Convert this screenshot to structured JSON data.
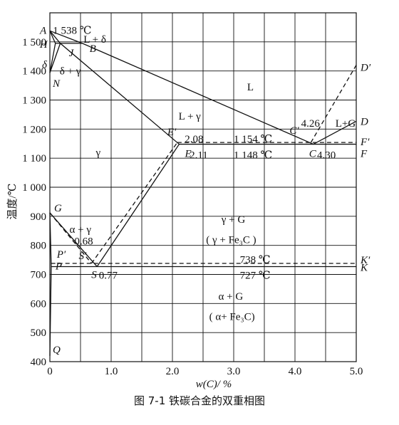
{
  "caption": "图 7-1   铁碳合金的双重相图",
  "chart_data": {
    "type": "phase-diagram",
    "xlabel": "w(C)/ %",
    "ylabel": "温度/℃",
    "xlim": [
      0,
      5.0
    ],
    "ylim": [
      400,
      1600
    ],
    "xticks": [
      "0",
      "1.0",
      "2.0",
      "3.0",
      "4.0",
      "5.0"
    ],
    "yticks": [
      "400",
      "500",
      "600",
      "700",
      "800",
      "900",
      "1 000",
      "1 100",
      "1 200",
      "1 300",
      "1 400",
      "1 500"
    ],
    "grid": true,
    "points": {
      "A": [
        0,
        1538
      ],
      "B": [
        0.53,
        1495
      ],
      "H": [
        0.09,
        1495
      ],
      "J": [
        0.17,
        1495
      ],
      "N": [
        0,
        1394
      ],
      "E": [
        2.11,
        1148
      ],
      "C": [
        4.3,
        1148
      ],
      "D": [
        5.0,
        1227
      ],
      "F": [
        5.0,
        1148
      ],
      "E'": [
        2.08,
        1154
      ],
      "C'": [
        4.26,
        1154
      ],
      "D'": [
        5.0,
        1420
      ],
      "F'": [
        5.0,
        1154
      ],
      "G": [
        0,
        912
      ],
      "S": [
        0.77,
        727
      ],
      "P": [
        0.0218,
        727
      ],
      "K": [
        5.0,
        727
      ],
      "S'": [
        0.68,
        738
      ],
      "P'": [
        0.02,
        738
      ],
      "K'": [
        5.0,
        738
      ],
      "Q": [
        0,
        420
      ]
    },
    "lines": {
      "solid": [
        [
          "A",
          "B",
          "C",
          "D"
        ],
        [
          "A",
          "J",
          "E"
        ],
        [
          "A",
          "H"
        ],
        [
          "H",
          "J",
          "B"
        ],
        [
          "H",
          "N"
        ],
        [
          "N",
          "J"
        ],
        [
          "E",
          "C",
          "F"
        ],
        [
          "G",
          "S"
        ],
        [
          "S",
          "E"
        ],
        [
          "G",
          "P"
        ],
        [
          "P",
          "S",
          "K"
        ],
        [
          "P",
          "Q"
        ]
      ],
      "dashed": [
        [
          "C'",
          "D'"
        ],
        [
          "E'",
          "C'",
          "F'"
        ],
        [
          "S'",
          "E'"
        ],
        [
          "G",
          "S'"
        ],
        [
          "P'",
          "S'",
          "K'"
        ]
      ]
    },
    "point_labels": [
      {
        "name": "A",
        "text": "A"
      },
      {
        "name": "B",
        "text": "B"
      },
      {
        "name": "H",
        "text": "H"
      },
      {
        "name": "J",
        "text": "J"
      },
      {
        "name": "N",
        "text": "N"
      },
      {
        "name": "D",
        "text": "D"
      },
      {
        "name": "D'",
        "text": "D′"
      },
      {
        "name": "F",
        "text": "F"
      },
      {
        "name": "F'",
        "text": "F′"
      },
      {
        "name": "G",
        "text": "G"
      },
      {
        "name": "Q",
        "text": "Q"
      },
      {
        "name": "K",
        "text": "K"
      },
      {
        "name": "K'",
        "text": "K′"
      },
      {
        "name": "P",
        "text": "P"
      },
      {
        "name": "P'",
        "text": "P′"
      },
      {
        "name": "S",
        "text": "S"
      },
      {
        "name": "S'",
        "text": "S′"
      },
      {
        "name": "E",
        "text": "E"
      },
      {
        "name": "E'",
        "text": "E′"
      },
      {
        "name": "C",
        "text": "C"
      },
      {
        "name": "C'",
        "text": "C′"
      },
      {
        "name": "delta",
        "text": "δ"
      }
    ],
    "annotations": [
      {
        "text": "1 538 ℃",
        "x": 0.05,
        "y": 1540
      },
      {
        "text": "L + δ",
        "x": 0.55,
        "y": 1510
      },
      {
        "text": "δ + γ",
        "x": 0.16,
        "y": 1400
      },
      {
        "text": "L",
        "x": 3.22,
        "y": 1345
      },
      {
        "text": "L + γ",
        "x": 2.1,
        "y": 1245
      },
      {
        "text": "4.26",
        "x": 4.1,
        "y": 1220
      },
      {
        "text": "L+G",
        "x": 4.66,
        "y": 1220
      },
      {
        "text": "2.08",
        "x": 2.2,
        "y": 1167
      },
      {
        "text": "1 154 ℃",
        "x": 3.0,
        "y": 1167
      },
      {
        "text": "2.11",
        "x": 2.28,
        "y": 1112
      },
      {
        "text": "1 148 ℃",
        "x": 3.0,
        "y": 1112
      },
      {
        "text": "4.30",
        "x": 4.36,
        "y": 1112
      },
      {
        "text": "γ",
        "x": 0.75,
        "y": 1120
      },
      {
        "text": "γ + G",
        "x": 2.8,
        "y": 890
      },
      {
        "text": "( γ + Fe₃C )",
        "x": 2.55,
        "y": 820
      },
      {
        "text": "α + γ",
        "x": 0.32,
        "y": 855
      },
      {
        "text": "0.68",
        "x": 0.4,
        "y": 815
      },
      {
        "text": "738 ℃",
        "x": 3.1,
        "y": 752
      },
      {
        "text": "727 ℃",
        "x": 3.1,
        "y": 697
      },
      {
        "text": "0.77",
        "x": 0.8,
        "y": 697
      },
      {
        "text": "α + G",
        "x": 2.75,
        "y": 625
      },
      {
        "text": "( α+ Fe₃C)",
        "x": 2.6,
        "y": 555
      }
    ]
  }
}
